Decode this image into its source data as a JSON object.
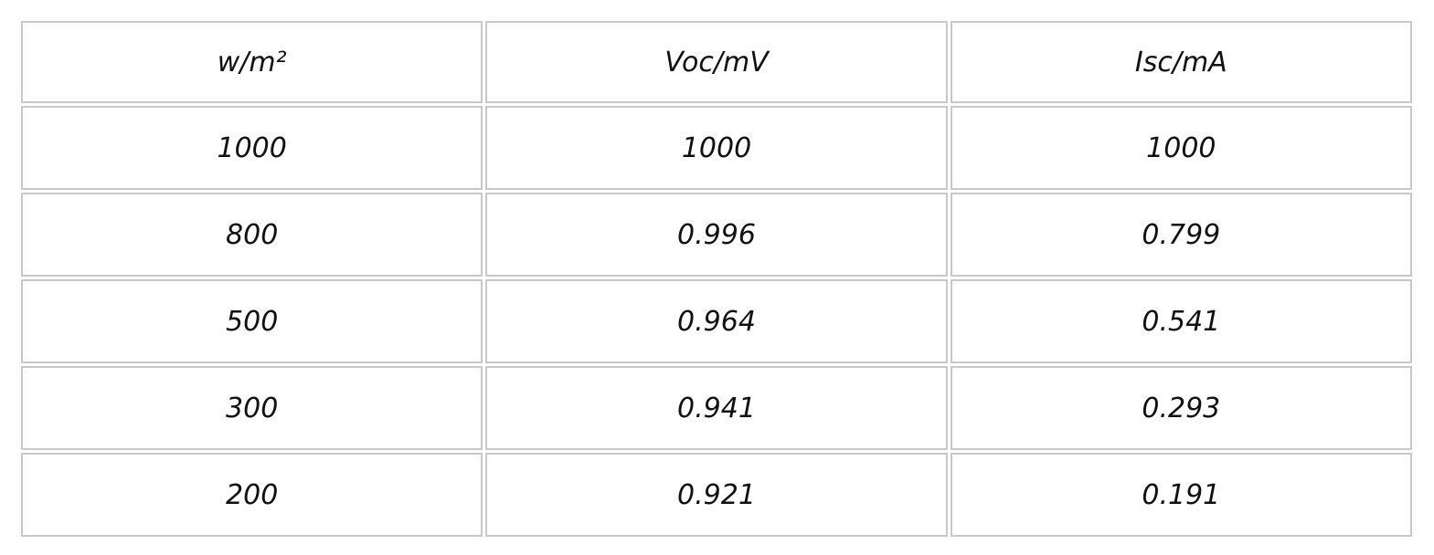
{
  "chart_data": {
    "type": "table",
    "columns": [
      "w/m²",
      "Voc/mV",
      "Isc/mA"
    ],
    "rows": [
      [
        "1000",
        "1000",
        "1000"
      ],
      [
        "800",
        "0.996",
        "0.799"
      ],
      [
        "500",
        "0.964",
        "0.541"
      ],
      [
        "300",
        "0.941",
        "0.293"
      ],
      [
        "200",
        "0.921",
        "0.191"
      ]
    ]
  }
}
